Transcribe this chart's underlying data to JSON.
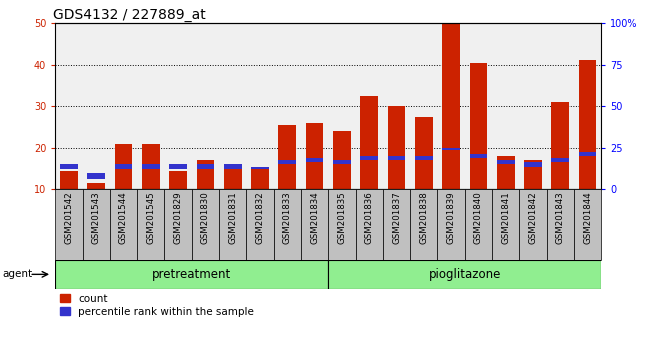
{
  "title": "GDS4132 / 227889_at",
  "samples": [
    "GSM201542",
    "GSM201543",
    "GSM201544",
    "GSM201545",
    "GSM201829",
    "GSM201830",
    "GSM201831",
    "GSM201832",
    "GSM201833",
    "GSM201834",
    "GSM201835",
    "GSM201836",
    "GSM201837",
    "GSM201838",
    "GSM201839",
    "GSM201840",
    "GSM201841",
    "GSM201842",
    "GSM201843",
    "GSM201844"
  ],
  "red_values": [
    14.5,
    11.5,
    21.0,
    21.0,
    14.5,
    17.0,
    15.5,
    15.5,
    25.5,
    26.0,
    24.0,
    32.5,
    30.0,
    27.5,
    50.0,
    40.5,
    18.0,
    17.0,
    31.0,
    41.0
  ],
  "blue_values": [
    1.0,
    1.5,
    1.0,
    1.0,
    1.0,
    1.0,
    1.0,
    0.4,
    1.0,
    1.0,
    1.0,
    1.0,
    1.0,
    1.0,
    0.4,
    1.0,
    1.0,
    1.0,
    1.0,
    1.0
  ],
  "blue_positions": [
    15.0,
    12.5,
    15.0,
    15.0,
    15.0,
    15.0,
    15.0,
    15.0,
    16.0,
    16.5,
    16.0,
    17.0,
    17.0,
    17.0,
    19.5,
    17.5,
    16.0,
    15.5,
    16.5,
    18.0
  ],
  "pretreatment_count": 10,
  "groups": [
    {
      "label": "pretreatment",
      "color": "#90EE90"
    },
    {
      "label": "pioglitazone",
      "color": "#90EE90"
    }
  ],
  "bar_color_red": "#CC2200",
  "bar_color_blue": "#3333CC",
  "ylim_left": [
    10,
    50
  ],
  "ylim_right": [
    0,
    100
  ],
  "yticks_left": [
    10,
    20,
    30,
    40,
    50
  ],
  "yticks_right": [
    0,
    25,
    50,
    75,
    100
  ],
  "ytick_labels_right": [
    "0",
    "25",
    "50",
    "75",
    "100%"
  ],
  "col_bg": "#C0C0C0",
  "plot_bg": "#F0F0F0",
  "agent_label": "agent",
  "legend_count": "count",
  "legend_pct": "percentile rank within the sample",
  "title_fontsize": 10,
  "tick_fontsize": 7,
  "bar_width": 0.65
}
